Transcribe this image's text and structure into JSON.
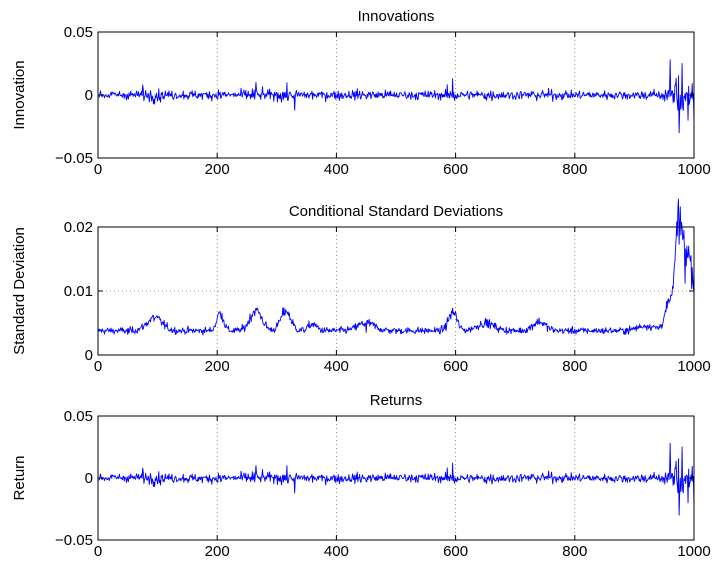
{
  "colors": {
    "series": "#0000ff"
  },
  "chart_data": [
    {
      "type": "line",
      "title": "Innovations",
      "ylabel": "Innovation",
      "xlim": [
        0,
        1000
      ],
      "ylim": [
        -0.05,
        0.05
      ],
      "xticks": [
        "0",
        "200",
        "400",
        "600",
        "800",
        "1000"
      ],
      "yticks": [
        "0.05",
        "0",
        "−0.05"
      ],
      "ytick_values": [
        0.05,
        0,
        -0.05
      ],
      "grid": true,
      "series": [
        {
          "x_range": [
            1,
            1000
          ],
          "profile": "innovations",
          "keypoints": [
            [
              75,
              0.008
            ],
            [
              265,
              0.01
            ],
            [
              330,
              -0.012
            ],
            [
              595,
              0.013
            ],
            [
              960,
              0.028
            ],
            [
              975,
              -0.03
            ],
            [
              980,
              0.025
            ],
            [
              990,
              -0.02
            ],
            [
              1000,
              -0.022
            ]
          ]
        }
      ]
    },
    {
      "type": "line",
      "title": "Conditional Standard Deviations",
      "ylabel": "Standard Deviation",
      "xlim": [
        0,
        1000
      ],
      "ylim": [
        0,
        0.02
      ],
      "xticks": [
        "0",
        "200",
        "400",
        "600",
        "800",
        "1000"
      ],
      "yticks": [
        "0.02",
        "0.01",
        "0"
      ],
      "ytick_values": [
        0.02,
        0.01,
        0
      ],
      "grid": true,
      "series": [
        {
          "x_range": [
            1,
            1000
          ],
          "profile": "conditional_sd",
          "keypoints": [
            [
              0,
              0.0037
            ],
            [
              50,
              0.0032
            ],
            [
              100,
              0.0058
            ],
            [
              205,
              0.0068
            ],
            [
              265,
              0.0073
            ],
            [
              315,
              0.0071
            ],
            [
              450,
              0.0035
            ],
            [
              600,
              0.0068
            ],
            [
              700,
              0.0036
            ],
            [
              900,
              0.004
            ],
            [
              960,
              0.0085
            ],
            [
              975,
              0.0173
            ],
            [
              985,
              0.0112
            ],
            [
              1000,
              0.0135
            ]
          ]
        }
      ]
    },
    {
      "type": "line",
      "title": "Returns",
      "ylabel": "Return",
      "xlim": [
        0,
        1000
      ],
      "ylim": [
        -0.05,
        0.05
      ],
      "xticks": [
        "0",
        "200",
        "400",
        "600",
        "800",
        "1000"
      ],
      "yticks": [
        "0.05",
        "0",
        "−0.05"
      ],
      "ytick_values": [
        0.05,
        0,
        -0.05
      ],
      "grid": true,
      "series": [
        {
          "x_range": [
            1,
            1000
          ],
          "profile": "returns",
          "keypoints": [
            [
              75,
              0.008
            ],
            [
              265,
              0.01
            ],
            [
              330,
              -0.012
            ],
            [
              595,
              0.012
            ],
            [
              960,
              0.028
            ],
            [
              975,
              -0.03
            ],
            [
              980,
              0.025
            ],
            [
              990,
              -0.02
            ],
            [
              1000,
              -0.022
            ]
          ]
        }
      ]
    }
  ]
}
